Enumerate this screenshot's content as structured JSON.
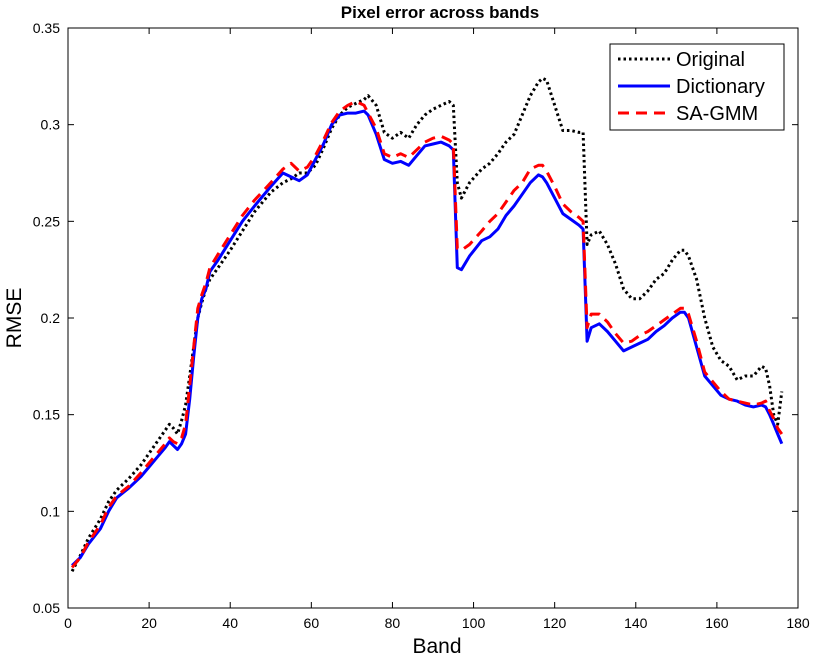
{
  "chart_data": {
    "type": "line",
    "title": "Pixel error across bands",
    "xlabel": "Band",
    "ylabel": "RMSE",
    "xlim": [
      0,
      180
    ],
    "ylim": [
      0.05,
      0.35
    ],
    "xticks": [
      0,
      20,
      40,
      60,
      80,
      100,
      120,
      140,
      160,
      180
    ],
    "yticks": [
      0.05,
      0.1,
      0.15,
      0.2,
      0.25,
      0.3,
      0.35
    ],
    "xtick_labels": [
      "0",
      "20",
      "40",
      "60",
      "80",
      "100",
      "120",
      "140",
      "160",
      "180"
    ],
    "ytick_labels": [
      "0.05",
      "0.1",
      "0.15",
      "0.2",
      "0.25",
      "0.3",
      "0.35"
    ],
    "grid": false,
    "legend_position": "top-right",
    "series": [
      {
        "name": "Original",
        "color": "#000000",
        "style": "dotted",
        "x": [
          1,
          3,
          5,
          8,
          10,
          12,
          15,
          18,
          20,
          22,
          24,
          25,
          26,
          27,
          28,
          29,
          30,
          31,
          32,
          33,
          34,
          35,
          37,
          40,
          43,
          46,
          50,
          53,
          55,
          57,
          59,
          61,
          63,
          65,
          67,
          69,
          71,
          73,
          74,
          76,
          78,
          80,
          82,
          84,
          86,
          88,
          90,
          92,
          94,
          95,
          96,
          97,
          99,
          102,
          104,
          106,
          108,
          110,
          112,
          114,
          116,
          117,
          118,
          120,
          122,
          124,
          126,
          127,
          128,
          129,
          131,
          133,
          135,
          137,
          139,
          141,
          143,
          145,
          147,
          149,
          151,
          152,
          153,
          155,
          157,
          159,
          161,
          163,
          165,
          167,
          169,
          171,
          172,
          173,
          174,
          175,
          176
        ],
        "y": [
          0.069,
          0.077,
          0.086,
          0.096,
          0.105,
          0.111,
          0.117,
          0.124,
          0.13,
          0.136,
          0.142,
          0.145,
          0.143,
          0.14,
          0.147,
          0.155,
          0.17,
          0.185,
          0.2,
          0.208,
          0.215,
          0.22,
          0.226,
          0.235,
          0.245,
          0.255,
          0.265,
          0.27,
          0.272,
          0.275,
          0.275,
          0.279,
          0.288,
          0.298,
          0.305,
          0.309,
          0.311,
          0.313,
          0.315,
          0.31,
          0.296,
          0.293,
          0.296,
          0.293,
          0.3,
          0.305,
          0.308,
          0.31,
          0.312,
          0.31,
          0.27,
          0.262,
          0.27,
          0.277,
          0.28,
          0.285,
          0.291,
          0.295,
          0.305,
          0.315,
          0.322,
          0.324,
          0.323,
          0.31,
          0.297,
          0.297,
          0.296,
          0.296,
          0.238,
          0.243,
          0.245,
          0.238,
          0.228,
          0.215,
          0.21,
          0.21,
          0.214,
          0.22,
          0.223,
          0.23,
          0.235,
          0.235,
          0.232,
          0.22,
          0.2,
          0.185,
          0.178,
          0.175,
          0.168,
          0.17,
          0.17,
          0.175,
          0.174,
          0.165,
          0.15,
          0.145,
          0.162
        ]
      },
      {
        "name": "Dictionary",
        "color": "#0000ff",
        "style": "solid",
        "x": [
          1,
          3,
          5,
          8,
          10,
          12,
          15,
          18,
          20,
          22,
          24,
          25,
          26,
          27,
          28,
          29,
          30,
          31,
          32,
          33,
          34,
          35,
          37,
          40,
          43,
          46,
          50,
          53,
          55,
          57,
          59,
          61,
          63,
          65,
          67,
          69,
          71,
          73,
          74,
          76,
          78,
          80,
          82,
          84,
          86,
          88,
          90,
          92,
          94,
          95,
          96,
          97,
          99,
          102,
          104,
          106,
          108,
          110,
          112,
          114,
          116,
          117,
          118,
          120,
          122,
          124,
          126,
          127,
          128,
          129,
          131,
          133,
          135,
          137,
          139,
          141,
          143,
          145,
          147,
          149,
          151,
          152,
          153,
          155,
          157,
          159,
          161,
          163,
          165,
          167,
          169,
          171,
          172,
          173,
          174,
          175,
          176
        ],
        "y": [
          0.072,
          0.076,
          0.083,
          0.091,
          0.1,
          0.107,
          0.112,
          0.118,
          0.123,
          0.128,
          0.133,
          0.136,
          0.134,
          0.132,
          0.135,
          0.14,
          0.158,
          0.18,
          0.2,
          0.21,
          0.215,
          0.224,
          0.23,
          0.24,
          0.25,
          0.258,
          0.268,
          0.275,
          0.273,
          0.271,
          0.274,
          0.282,
          0.29,
          0.3,
          0.305,
          0.306,
          0.306,
          0.307,
          0.305,
          0.295,
          0.282,
          0.28,
          0.281,
          0.279,
          0.284,
          0.289,
          0.29,
          0.291,
          0.289,
          0.287,
          0.226,
          0.225,
          0.232,
          0.24,
          0.242,
          0.246,
          0.253,
          0.258,
          0.264,
          0.27,
          0.274,
          0.273,
          0.27,
          0.262,
          0.254,
          0.251,
          0.248,
          0.246,
          0.188,
          0.195,
          0.197,
          0.193,
          0.188,
          0.183,
          0.185,
          0.187,
          0.189,
          0.193,
          0.196,
          0.2,
          0.203,
          0.203,
          0.2,
          0.185,
          0.17,
          0.165,
          0.16,
          0.158,
          0.157,
          0.155,
          0.154,
          0.155,
          0.154,
          0.15,
          0.145,
          0.14,
          0.135
        ]
      },
      {
        "name": "SA-GMM",
        "color": "#ff0000",
        "style": "dashed",
        "x": [
          1,
          3,
          5,
          8,
          10,
          12,
          15,
          18,
          20,
          22,
          24,
          25,
          26,
          27,
          28,
          29,
          30,
          31,
          32,
          33,
          34,
          35,
          37,
          40,
          43,
          46,
          50,
          53,
          55,
          57,
          59,
          61,
          63,
          65,
          67,
          69,
          71,
          73,
          74,
          76,
          78,
          80,
          82,
          84,
          86,
          88,
          90,
          92,
          94,
          95,
          96,
          97,
          99,
          102,
          104,
          106,
          108,
          110,
          112,
          114,
          116,
          117,
          118,
          120,
          122,
          124,
          126,
          127,
          128,
          129,
          131,
          133,
          135,
          137,
          139,
          141,
          143,
          145,
          147,
          149,
          151,
          152,
          153,
          155,
          157,
          159,
          161,
          163,
          165,
          167,
          169,
          171,
          172,
          173,
          174,
          175,
          176
        ],
        "y": [
          0.071,
          0.076,
          0.084,
          0.093,
          0.102,
          0.108,
          0.113,
          0.12,
          0.125,
          0.13,
          0.135,
          0.138,
          0.136,
          0.135,
          0.138,
          0.145,
          0.165,
          0.185,
          0.205,
          0.212,
          0.218,
          0.226,
          0.233,
          0.243,
          0.253,
          0.261,
          0.27,
          0.277,
          0.28,
          0.276,
          0.278,
          0.284,
          0.292,
          0.301,
          0.307,
          0.31,
          0.312,
          0.31,
          0.306,
          0.298,
          0.285,
          0.283,
          0.285,
          0.283,
          0.287,
          0.291,
          0.293,
          0.294,
          0.292,
          0.29,
          0.236,
          0.235,
          0.238,
          0.245,
          0.25,
          0.254,
          0.26,
          0.266,
          0.27,
          0.277,
          0.279,
          0.279,
          0.276,
          0.268,
          0.259,
          0.255,
          0.252,
          0.25,
          0.195,
          0.202,
          0.202,
          0.198,
          0.192,
          0.187,
          0.188,
          0.191,
          0.193,
          0.196,
          0.199,
          0.202,
          0.205,
          0.205,
          0.202,
          0.188,
          0.172,
          0.167,
          0.162,
          0.158,
          0.157,
          0.156,
          0.155,
          0.156,
          0.157,
          0.152,
          0.148,
          0.143,
          0.14
        ]
      }
    ]
  }
}
